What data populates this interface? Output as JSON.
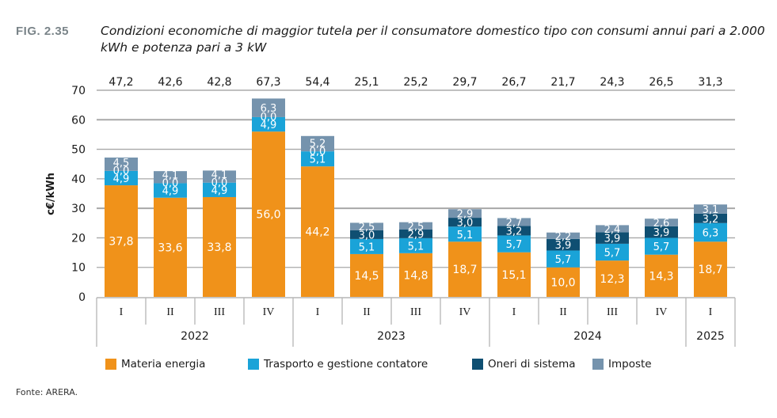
{
  "figure": {
    "label": "FIG. 2.35",
    "title": "Condizioni economiche di maggior tutela per il consumatore domestico tipo con consumi annui pari a 2.000 kWh e potenza pari a 3 kW",
    "source": "Fonte: ARERA."
  },
  "chart_data": {
    "type": "bar",
    "stacked": true,
    "title": "Condizioni economiche di maggior tutela per il consumatore domestico tipo con consumi annui pari a 2.000 kWh e potenza pari a 3 kW",
    "xlabel": "",
    "ylabel": "c€/kWh",
    "ylim": [
      0,
      70
    ],
    "yticks": [
      "0",
      "10",
      "20",
      "30",
      "40",
      "50",
      "60",
      "70"
    ],
    "grid": true,
    "legend_position": "bottom",
    "categories": [
      "I",
      "II",
      "III",
      "IV",
      "I",
      "II",
      "III",
      "IV",
      "I",
      "II",
      "III",
      "IV",
      "I"
    ],
    "groups": [
      {
        "label": "2022",
        "span": 4
      },
      {
        "label": "2023",
        "span": 4
      },
      {
        "label": "2024",
        "span": 4
      },
      {
        "label": "2025",
        "span": 1
      }
    ],
    "totals": [
      "47,2",
      "42,6",
      "42,8",
      "67,3",
      "54,4",
      "25,1",
      "25,2",
      "29,7",
      "26,7",
      "21,7",
      "24,3",
      "26,5",
      "31,3"
    ],
    "series": [
      {
        "name": "Materia energia",
        "color": "#f0921a",
        "label_color": "#ffffff",
        "values": [
          37.8,
          33.6,
          33.8,
          56.0,
          44.2,
          14.5,
          14.8,
          18.7,
          15.1,
          10.0,
          12.3,
          14.3,
          18.7
        ]
      },
      {
        "name": "Trasporto e gestione contatore",
        "color": "#1aa3d8",
        "label_color": "#ffffff",
        "values": [
          4.9,
          4.9,
          4.9,
          4.9,
          5.1,
          5.1,
          5.1,
          5.1,
          5.7,
          5.7,
          5.7,
          5.7,
          6.3
        ]
      },
      {
        "name": "Oneri di sistema",
        "color": "#0f4f72",
        "label_color": "#ffffff",
        "values": [
          0.0,
          0.0,
          0.0,
          0.0,
          0.0,
          3.0,
          2.9,
          3.0,
          3.2,
          3.9,
          3.9,
          3.9,
          3.2
        ]
      },
      {
        "name": "Imposte",
        "color": "#7593ad",
        "label_color": "#ffffff",
        "values": [
          4.5,
          4.1,
          4.1,
          6.3,
          5.2,
          2.5,
          2.5,
          2.9,
          2.7,
          2.2,
          2.4,
          2.6,
          3.1
        ]
      }
    ]
  }
}
